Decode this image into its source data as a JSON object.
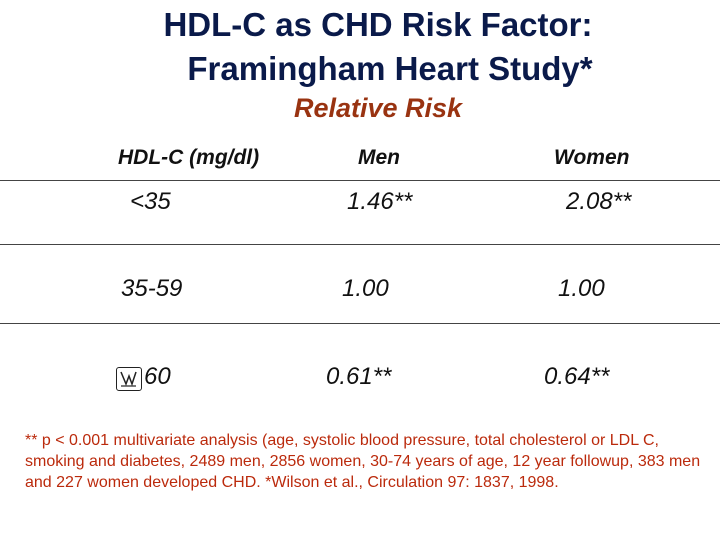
{
  "slide": {
    "title_line1": "HDL-C as CHD Risk Factor:",
    "title_line2": "Framingham Heart Study*",
    "subtitle": "Relative Risk"
  },
  "table": {
    "headers": [
      "HDL-C (mg/dl)",
      "Men",
      "Women"
    ],
    "rows": [
      {
        "range": "<35",
        "men": "1.46**",
        "women": "2.08**"
      },
      {
        "range": "35-59",
        "men": "1.00",
        "women": "1.00"
      },
      {
        "range": "60",
        "men": "0.61**",
        "women": "0.64**"
      }
    ]
  },
  "footnote": "** p < 0.001 multivariate analysis (age, systolic blood pressure,  total cholesterol or LDL C, smoking and diabetes, 2489 men, 2856 women, 30-74 years of age, 12 year followup, 383 men and 227 women developed CHD. *Wilson et al., Circulation 97: 1837, 1998."
}
